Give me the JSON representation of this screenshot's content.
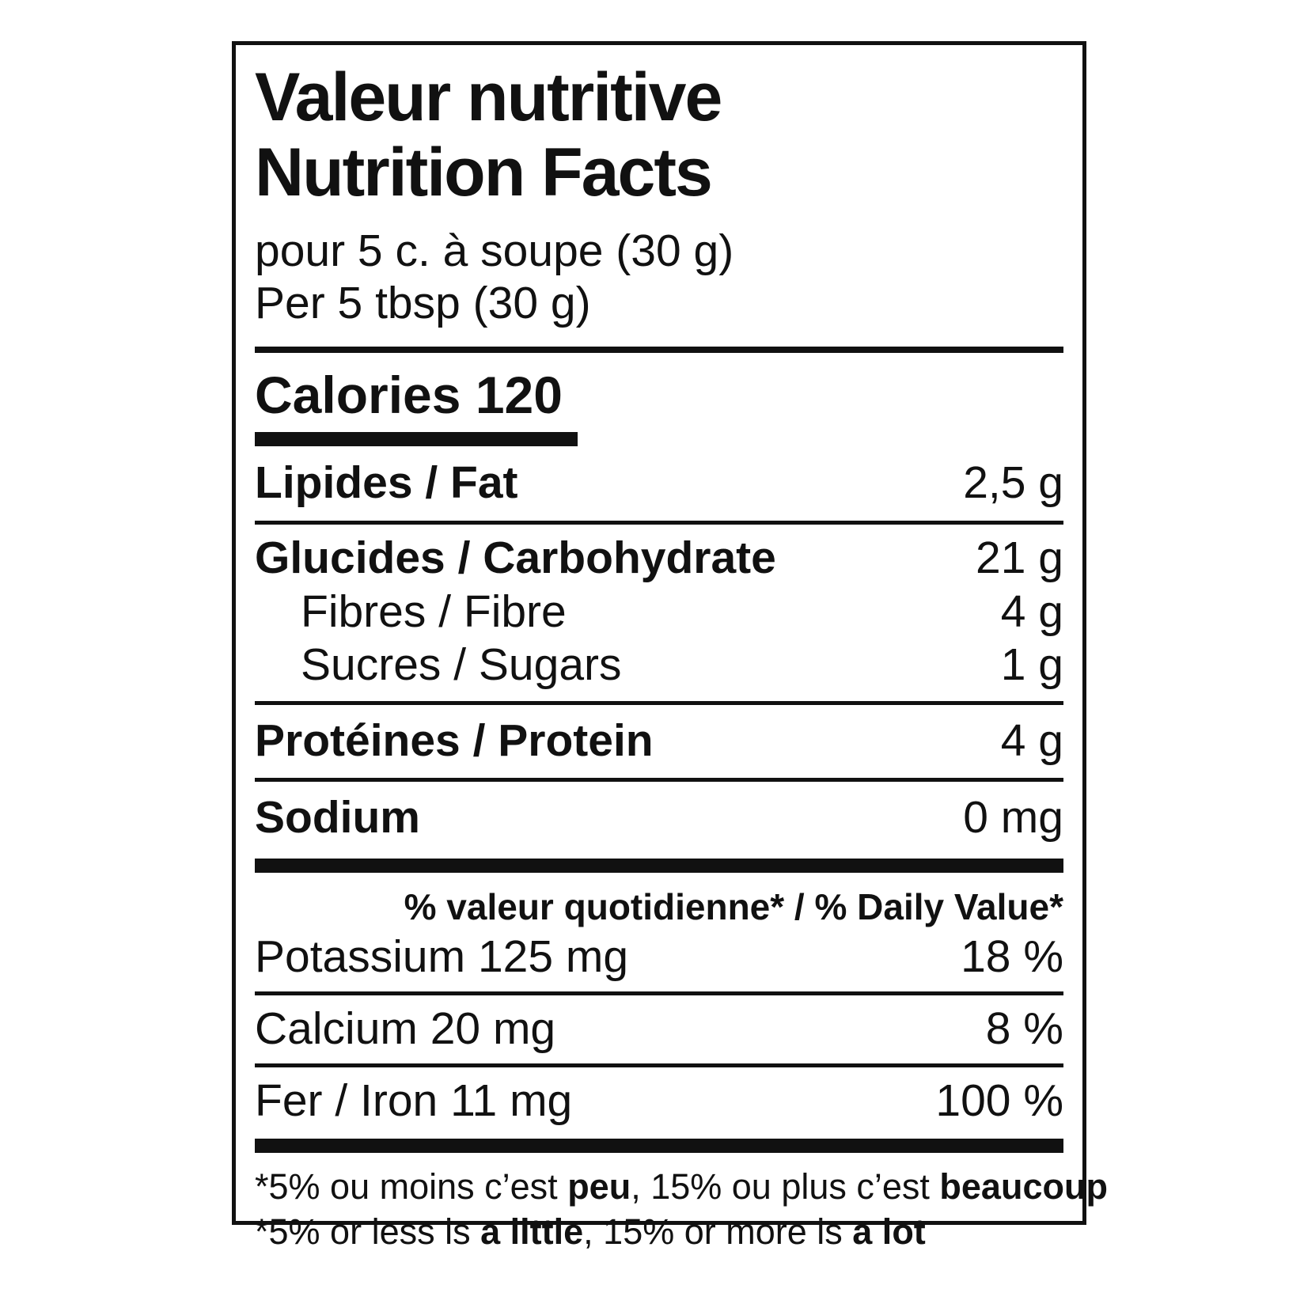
{
  "label": {
    "title_fr": "Valeur nutritive",
    "title_en": "Nutrition Facts",
    "serving_fr": "pour 5 c. à soupe (30 g)",
    "serving_en": "Per 5 tbsp (30 g)",
    "calories_label": "Calories",
    "calories_value": "120",
    "nutrients": [
      {
        "name": "Lipides / Fat",
        "value": "2,5 g"
      },
      {
        "name": "Glucides / Carbohydrate",
        "value": "21 g"
      },
      {
        "name": "Fibres / Fibre",
        "value": "4 g"
      },
      {
        "name": "Sucres / Sugars",
        "value": "1 g"
      },
      {
        "name": "Protéines / Protein",
        "value": "4 g"
      },
      {
        "name": "Sodium",
        "value": "0 mg"
      }
    ],
    "daily_value_header": "% valeur quotidienne* / % Daily Value*",
    "minerals": [
      {
        "name": "Potassium 125 mg",
        "value": "18 %"
      },
      {
        "name": "Calcium 20 mg",
        "value": "8 %"
      },
      {
        "name": "Fer / Iron 11 mg",
        "value": "100 %"
      }
    ],
    "footnote_fr": {
      "pre": "*5% ou moins c’est ",
      "bold1": "peu",
      "mid": ", 15% ou plus c’est ",
      "bold2": "beaucoup"
    },
    "footnote_en": {
      "pre": "*5% or less is ",
      "bold1": "a little",
      "mid": ", 15% or more is ",
      "bold2": "a lot"
    },
    "colors": {
      "text": "#111111",
      "background": "#ffffff",
      "border": "#111111"
    }
  }
}
